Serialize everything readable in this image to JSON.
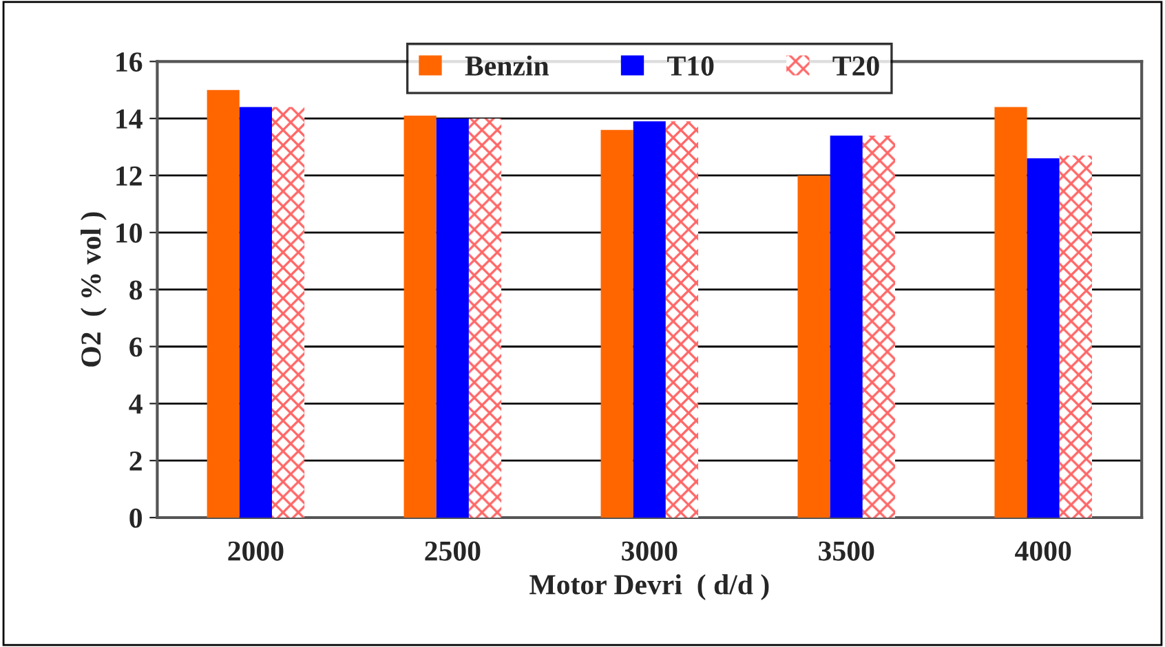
{
  "chart_data": {
    "type": "bar",
    "xlabel": "Motor Devri  ( d/d )",
    "ylabel": "O2  ( % vol )",
    "categories": [
      "2000",
      "2500",
      "3000",
      "3500",
      "4000"
    ],
    "series": [
      {
        "name": "Benzin",
        "color": "#ff6600",
        "values": [
          15.0,
          14.1,
          13.6,
          12.0,
          14.4
        ]
      },
      {
        "name": "T10",
        "color": "#0000ff",
        "values": [
          14.4,
          14.0,
          13.9,
          13.4,
          12.6
        ]
      },
      {
        "name": "T20",
        "color": "#ff6666",
        "values": [
          14.4,
          14.0,
          13.9,
          13.4,
          12.7
        ]
      }
    ],
    "ylim": [
      0,
      16
    ],
    "yticks": [
      0,
      2,
      4,
      6,
      8,
      10,
      12,
      14,
      16
    ],
    "grid": "y",
    "legend": "top"
  }
}
